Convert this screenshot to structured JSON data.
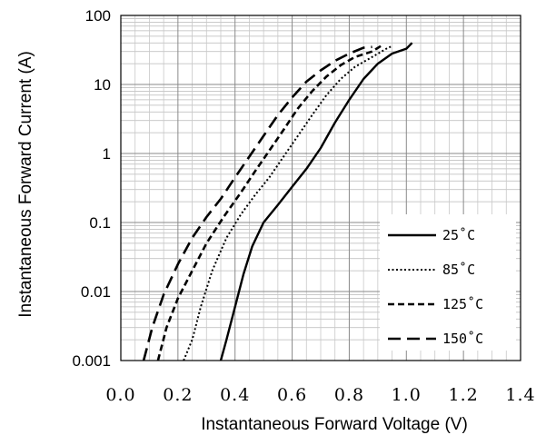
{
  "chart_data": {
    "type": "line",
    "title": "",
    "xlabel": "Instantaneous Forward Voltage (V)",
    "ylabel": "Instantaneous Forward Current (A)",
    "xlim": [
      0.0,
      1.4
    ],
    "ylim": [
      0.001,
      100
    ],
    "yscale": "log",
    "grid": true,
    "legend_position": "lower-right",
    "x_tick_labels": [
      "0.0",
      "0.2",
      "0.4",
      "0.6",
      "0.8",
      "1.0",
      "1.2",
      "1.4"
    ],
    "y_tick_labels": [
      "100",
      "10",
      "1",
      "0.1",
      "0.01",
      "0.001"
    ],
    "series": [
      {
        "name": "25˚C",
        "style": "solid",
        "points": [
          [
            0.35,
            0.001
          ],
          [
            0.37,
            0.002
          ],
          [
            0.4,
            0.006
          ],
          [
            0.43,
            0.018
          ],
          [
            0.46,
            0.045
          ],
          [
            0.5,
            0.1
          ],
          [
            0.55,
            0.18
          ],
          [
            0.6,
            0.33
          ],
          [
            0.65,
            0.6
          ],
          [
            0.7,
            1.2
          ],
          [
            0.75,
            2.8
          ],
          [
            0.8,
            6.0
          ],
          [
            0.85,
            12
          ],
          [
            0.9,
            20
          ],
          [
            0.95,
            28
          ],
          [
            1.0,
            33
          ],
          [
            1.02,
            40
          ]
        ]
      },
      {
        "name": "85˚C",
        "style": "dotted",
        "points": [
          [
            0.22,
            0.001
          ],
          [
            0.25,
            0.002
          ],
          [
            0.28,
            0.006
          ],
          [
            0.32,
            0.02
          ],
          [
            0.37,
            0.06
          ],
          [
            0.42,
            0.13
          ],
          [
            0.47,
            0.25
          ],
          [
            0.52,
            0.45
          ],
          [
            0.57,
            0.9
          ],
          [
            0.62,
            1.8
          ],
          [
            0.67,
            3.6
          ],
          [
            0.72,
            7.0
          ],
          [
            0.77,
            12
          ],
          [
            0.82,
            18
          ],
          [
            0.88,
            25
          ],
          [
            0.93,
            33
          ],
          [
            0.95,
            36
          ]
        ]
      },
      {
        "name": "125˚C",
        "style": "short-dash",
        "points": [
          [
            0.13,
            0.001
          ],
          [
            0.16,
            0.003
          ],
          [
            0.2,
            0.008
          ],
          [
            0.25,
            0.02
          ],
          [
            0.3,
            0.05
          ],
          [
            0.36,
            0.12
          ],
          [
            0.42,
            0.27
          ],
          [
            0.47,
            0.55
          ],
          [
            0.52,
            1.1
          ],
          [
            0.57,
            2.2
          ],
          [
            0.62,
            4.5
          ],
          [
            0.67,
            8.0
          ],
          [
            0.72,
            13
          ],
          [
            0.77,
            19
          ],
          [
            0.82,
            25
          ],
          [
            0.88,
            30
          ],
          [
            0.92,
            38
          ]
        ]
      },
      {
        "name": "150˚C",
        "style": "long-dash",
        "points": [
          [
            0.08,
            0.001
          ],
          [
            0.11,
            0.003
          ],
          [
            0.15,
            0.009
          ],
          [
            0.2,
            0.025
          ],
          [
            0.25,
            0.06
          ],
          [
            0.3,
            0.12
          ],
          [
            0.35,
            0.22
          ],
          [
            0.4,
            0.45
          ],
          [
            0.45,
            0.9
          ],
          [
            0.5,
            1.8
          ],
          [
            0.55,
            3.6
          ],
          [
            0.6,
            6.5
          ],
          [
            0.65,
            11
          ],
          [
            0.7,
            16
          ],
          [
            0.75,
            22
          ],
          [
            0.8,
            28
          ],
          [
            0.85,
            34
          ],
          [
            0.88,
            35
          ]
        ]
      }
    ]
  }
}
